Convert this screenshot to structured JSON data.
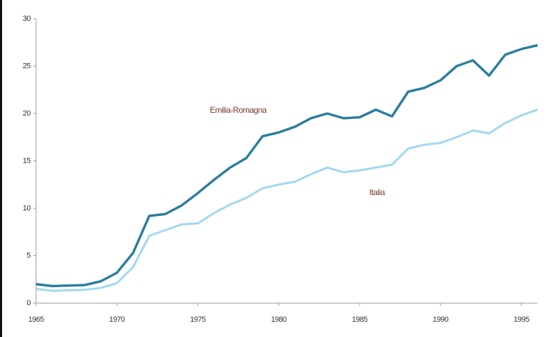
{
  "chart_data": {
    "type": "line",
    "x": [
      1965,
      1966,
      1967,
      1968,
      1969,
      1970,
      1971,
      1972,
      1973,
      1974,
      1975,
      1976,
      1977,
      1978,
      1979,
      1980,
      1981,
      1982,
      1983,
      1984,
      1985,
      1986,
      1987,
      1988,
      1989,
      1990,
      1991,
      1992,
      1993,
      1994,
      1995,
      1996
    ],
    "series": [
      {
        "name": "Emilia-Romagna",
        "color": "#2b7d9e",
        "values": [
          2.0,
          1.8,
          1.85,
          1.9,
          2.3,
          3.2,
          5.3,
          9.2,
          9.4,
          10.3,
          11.6,
          13.0,
          14.3,
          15.3,
          17.6,
          18.0,
          18.6,
          19.5,
          20.0,
          19.5,
          19.6,
          20.4,
          19.7,
          22.3,
          22.7,
          23.5,
          25.0,
          25.6,
          24.0,
          26.2,
          26.8,
          27.2
        ]
      },
      {
        "name": "Italia",
        "color": "#9fd8f0",
        "values": [
          1.5,
          1.3,
          1.35,
          1.4,
          1.6,
          2.1,
          3.8,
          7.1,
          7.7,
          8.3,
          8.4,
          9.5,
          10.4,
          11.1,
          12.1,
          12.5,
          12.8,
          13.6,
          14.3,
          13.8,
          14.0,
          14.3,
          14.6,
          16.3,
          16.7,
          16.9,
          17.5,
          18.2,
          17.9,
          19.0,
          19.8,
          20.4
        ]
      }
    ],
    "xlim": [
      1965,
      1996
    ],
    "xticks": [
      1965,
      1970,
      1975,
      1980,
      1985,
      1990,
      1995
    ],
    "ylim": [
      0,
      30
    ],
    "yticks": [
      0,
      5,
      10,
      15,
      20,
      25,
      30
    ]
  }
}
